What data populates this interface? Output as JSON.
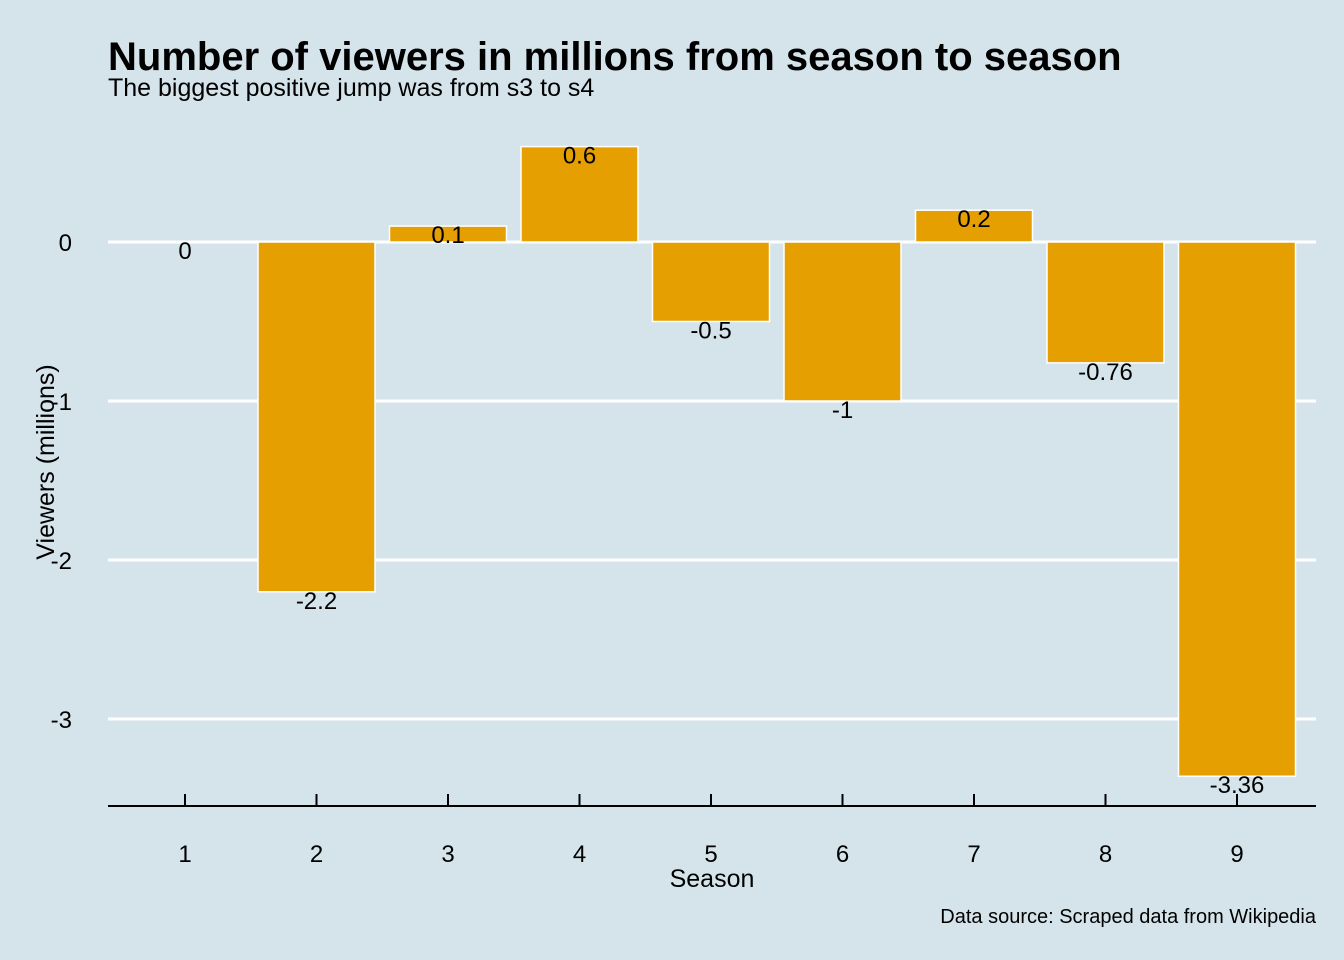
{
  "chart_data": {
    "type": "bar",
    "title": "Number of viewers in millions from season to season",
    "subtitle": "The biggest positive jump was from s3 to s4",
    "xlabel": "Season",
    "ylabel": "Viewers (millions)",
    "caption": "Data source: Scraped data from Wikipedia",
    "categories": [
      "1",
      "2",
      "3",
      "4",
      "5",
      "6",
      "7",
      "8",
      "9"
    ],
    "values": [
      0,
      -2.2,
      0.1,
      0.6,
      -0.5,
      -1,
      0.2,
      -0.76,
      -3.36
    ],
    "data_labels": [
      "0",
      "-2.2",
      "0.1",
      "0.6",
      "-0.5",
      "-1",
      "0.2",
      "-0.76",
      "-3.36"
    ],
    "yticks": [
      0,
      -1,
      -2,
      -3
    ],
    "ytick_labels": [
      "0",
      "-1",
      "-2",
      "-3"
    ],
    "ylim": [
      -3.56,
      0.7
    ],
    "bar_color": "#e69f00",
    "bar_outline_color": "#ffffff",
    "gridline_color": "#ffffff",
    "background_color": "#d5e4eb",
    "grid": "horizontal-major",
    "legend": "none"
  }
}
